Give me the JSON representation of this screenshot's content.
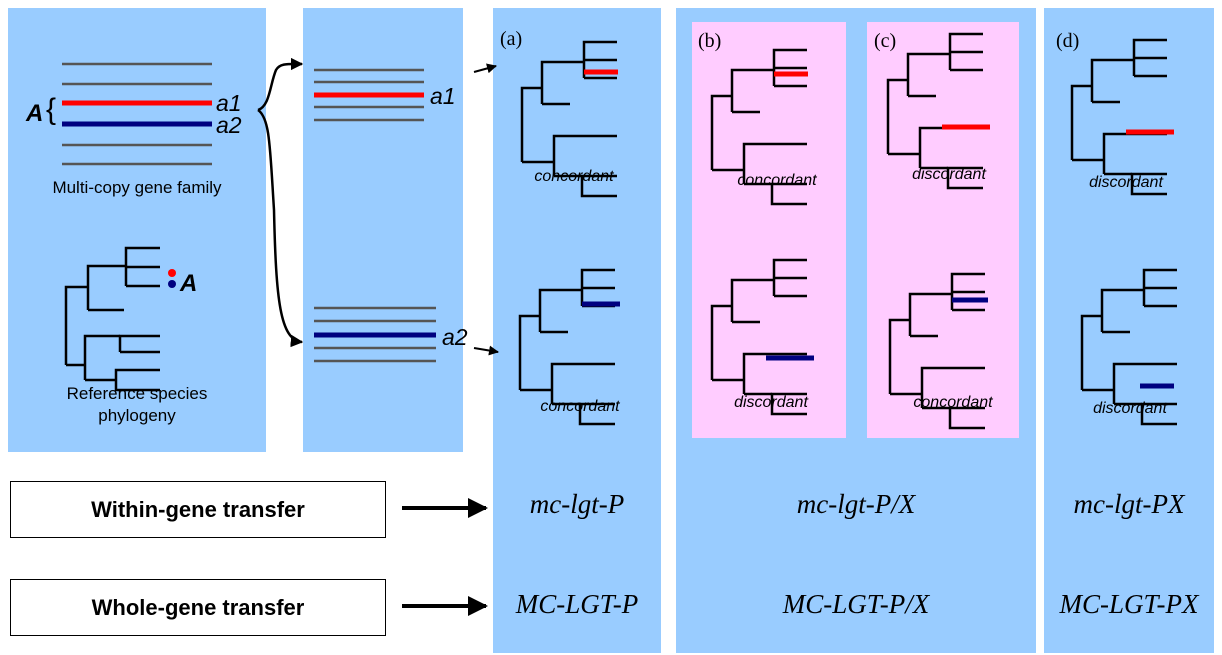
{
  "left_panel": {
    "allele_a1": "a1",
    "allele_a2": "a2",
    "family_symbol": "A",
    "family_brace": "{",
    "gene_family_caption": "Multi-copy gene family",
    "species_label": "A",
    "phylogeny_caption_line1": "Reference species",
    "phylogeny_caption_line2": "phylogeny"
  },
  "split_panel": {
    "allele_a1": "a1",
    "allele_a2": "a2"
  },
  "scenarios": [
    {
      "label": "(a)",
      "top_status": "concordant",
      "bottom_status": "concordant",
      "lower_case_code": "mc-lgt-P",
      "upper_case_code": "MC-LGT-P"
    },
    {
      "label": "(b)",
      "top_status": "concordant",
      "bottom_status": "discordant"
    },
    {
      "label": "(c)",
      "top_status": "discordant",
      "bottom_status": "concordant"
    },
    {
      "label": "(d)",
      "top_status": "discordant",
      "bottom_status": "discordant",
      "lower_case_code": "mc-lgt-PX",
      "upper_case_code": "MC-LGT-PX"
    }
  ],
  "shared_bc_codes": {
    "lower_case_code": "mc-lgt-P/X",
    "upper_case_code": "MC-LGT-P/X"
  },
  "transfer_types": {
    "within": "Within-gene transfer",
    "whole": "Whole-gene transfer"
  },
  "colors": {
    "panel_blue": "#99ccff",
    "panel_pink": "#ffccff",
    "allele_red": "#ff0000",
    "allele_blue": "#000080",
    "gene_gray": "#555555"
  }
}
